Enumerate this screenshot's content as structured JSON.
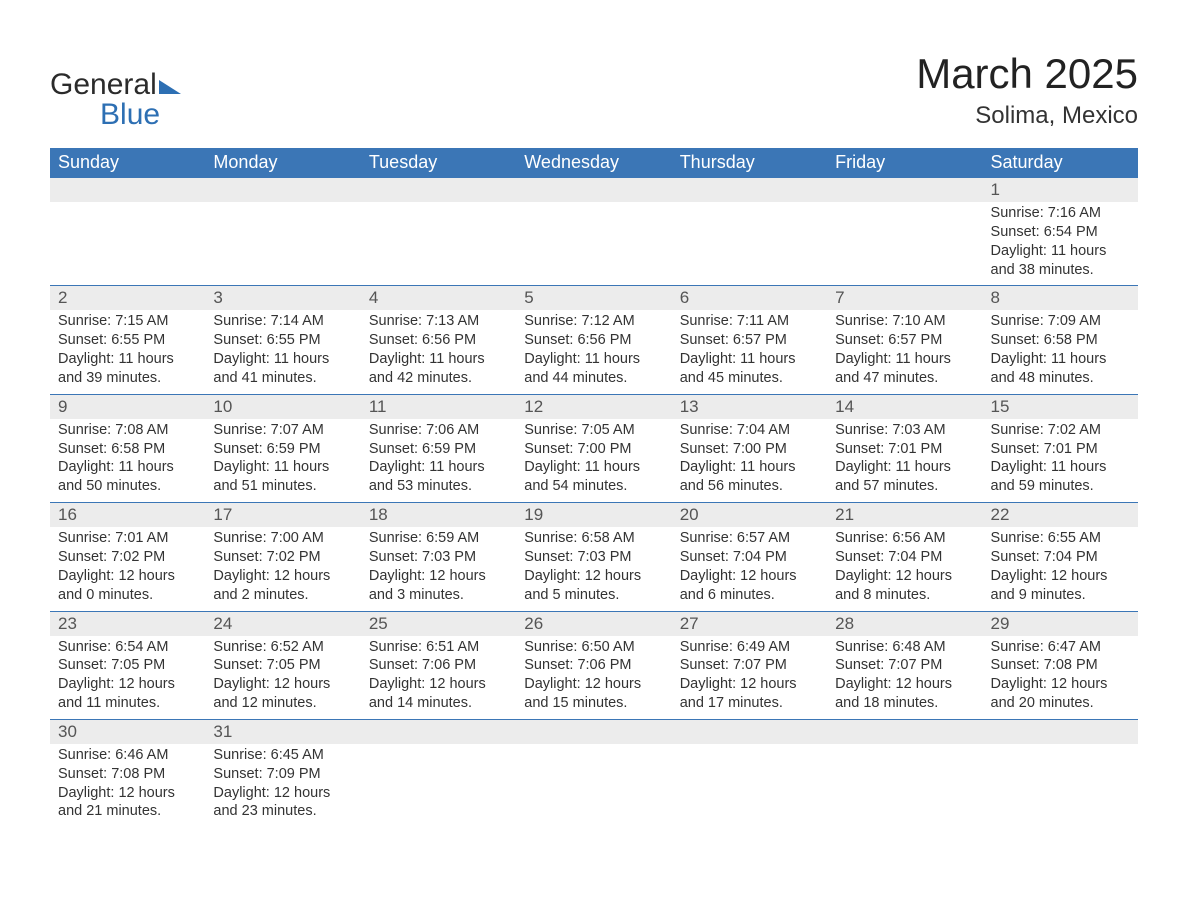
{
  "brand": {
    "word1": "General",
    "word2": "Blue"
  },
  "title": "March 2025",
  "location": "Solima, Mexico",
  "colors": {
    "header_bg": "#3b76b6",
    "header_text": "#ffffff",
    "daynum_bg": "#ececec",
    "border": "#3b76b6",
    "text": "#333333",
    "brand_blue": "#2d6fb3"
  },
  "weekdays": [
    "Sunday",
    "Monday",
    "Tuesday",
    "Wednesday",
    "Thursday",
    "Friday",
    "Saturday"
  ],
  "weeks": [
    [
      null,
      null,
      null,
      null,
      null,
      null,
      {
        "n": "1",
        "sr": "Sunrise: 7:16 AM",
        "ss": "Sunset: 6:54 PM",
        "d1": "Daylight: 11 hours",
        "d2": "and 38 minutes."
      }
    ],
    [
      {
        "n": "2",
        "sr": "Sunrise: 7:15 AM",
        "ss": "Sunset: 6:55 PM",
        "d1": "Daylight: 11 hours",
        "d2": "and 39 minutes."
      },
      {
        "n": "3",
        "sr": "Sunrise: 7:14 AM",
        "ss": "Sunset: 6:55 PM",
        "d1": "Daylight: 11 hours",
        "d2": "and 41 minutes."
      },
      {
        "n": "4",
        "sr": "Sunrise: 7:13 AM",
        "ss": "Sunset: 6:56 PM",
        "d1": "Daylight: 11 hours",
        "d2": "and 42 minutes."
      },
      {
        "n": "5",
        "sr": "Sunrise: 7:12 AM",
        "ss": "Sunset: 6:56 PM",
        "d1": "Daylight: 11 hours",
        "d2": "and 44 minutes."
      },
      {
        "n": "6",
        "sr": "Sunrise: 7:11 AM",
        "ss": "Sunset: 6:57 PM",
        "d1": "Daylight: 11 hours",
        "d2": "and 45 minutes."
      },
      {
        "n": "7",
        "sr": "Sunrise: 7:10 AM",
        "ss": "Sunset: 6:57 PM",
        "d1": "Daylight: 11 hours",
        "d2": "and 47 minutes."
      },
      {
        "n": "8",
        "sr": "Sunrise: 7:09 AM",
        "ss": "Sunset: 6:58 PM",
        "d1": "Daylight: 11 hours",
        "d2": "and 48 minutes."
      }
    ],
    [
      {
        "n": "9",
        "sr": "Sunrise: 7:08 AM",
        "ss": "Sunset: 6:58 PM",
        "d1": "Daylight: 11 hours",
        "d2": "and 50 minutes."
      },
      {
        "n": "10",
        "sr": "Sunrise: 7:07 AM",
        "ss": "Sunset: 6:59 PM",
        "d1": "Daylight: 11 hours",
        "d2": "and 51 minutes."
      },
      {
        "n": "11",
        "sr": "Sunrise: 7:06 AM",
        "ss": "Sunset: 6:59 PM",
        "d1": "Daylight: 11 hours",
        "d2": "and 53 minutes."
      },
      {
        "n": "12",
        "sr": "Sunrise: 7:05 AM",
        "ss": "Sunset: 7:00 PM",
        "d1": "Daylight: 11 hours",
        "d2": "and 54 minutes."
      },
      {
        "n": "13",
        "sr": "Sunrise: 7:04 AM",
        "ss": "Sunset: 7:00 PM",
        "d1": "Daylight: 11 hours",
        "d2": "and 56 minutes."
      },
      {
        "n": "14",
        "sr": "Sunrise: 7:03 AM",
        "ss": "Sunset: 7:01 PM",
        "d1": "Daylight: 11 hours",
        "d2": "and 57 minutes."
      },
      {
        "n": "15",
        "sr": "Sunrise: 7:02 AM",
        "ss": "Sunset: 7:01 PM",
        "d1": "Daylight: 11 hours",
        "d2": "and 59 minutes."
      }
    ],
    [
      {
        "n": "16",
        "sr": "Sunrise: 7:01 AM",
        "ss": "Sunset: 7:02 PM",
        "d1": "Daylight: 12 hours",
        "d2": "and 0 minutes."
      },
      {
        "n": "17",
        "sr": "Sunrise: 7:00 AM",
        "ss": "Sunset: 7:02 PM",
        "d1": "Daylight: 12 hours",
        "d2": "and 2 minutes."
      },
      {
        "n": "18",
        "sr": "Sunrise: 6:59 AM",
        "ss": "Sunset: 7:03 PM",
        "d1": "Daylight: 12 hours",
        "d2": "and 3 minutes."
      },
      {
        "n": "19",
        "sr": "Sunrise: 6:58 AM",
        "ss": "Sunset: 7:03 PM",
        "d1": "Daylight: 12 hours",
        "d2": "and 5 minutes."
      },
      {
        "n": "20",
        "sr": "Sunrise: 6:57 AM",
        "ss": "Sunset: 7:04 PM",
        "d1": "Daylight: 12 hours",
        "d2": "and 6 minutes."
      },
      {
        "n": "21",
        "sr": "Sunrise: 6:56 AM",
        "ss": "Sunset: 7:04 PM",
        "d1": "Daylight: 12 hours",
        "d2": "and 8 minutes."
      },
      {
        "n": "22",
        "sr": "Sunrise: 6:55 AM",
        "ss": "Sunset: 7:04 PM",
        "d1": "Daylight: 12 hours",
        "d2": "and 9 minutes."
      }
    ],
    [
      {
        "n": "23",
        "sr": "Sunrise: 6:54 AM",
        "ss": "Sunset: 7:05 PM",
        "d1": "Daylight: 12 hours",
        "d2": "and 11 minutes."
      },
      {
        "n": "24",
        "sr": "Sunrise: 6:52 AM",
        "ss": "Sunset: 7:05 PM",
        "d1": "Daylight: 12 hours",
        "d2": "and 12 minutes."
      },
      {
        "n": "25",
        "sr": "Sunrise: 6:51 AM",
        "ss": "Sunset: 7:06 PM",
        "d1": "Daylight: 12 hours",
        "d2": "and 14 minutes."
      },
      {
        "n": "26",
        "sr": "Sunrise: 6:50 AM",
        "ss": "Sunset: 7:06 PM",
        "d1": "Daylight: 12 hours",
        "d2": "and 15 minutes."
      },
      {
        "n": "27",
        "sr": "Sunrise: 6:49 AM",
        "ss": "Sunset: 7:07 PM",
        "d1": "Daylight: 12 hours",
        "d2": "and 17 minutes."
      },
      {
        "n": "28",
        "sr": "Sunrise: 6:48 AM",
        "ss": "Sunset: 7:07 PM",
        "d1": "Daylight: 12 hours",
        "d2": "and 18 minutes."
      },
      {
        "n": "29",
        "sr": "Sunrise: 6:47 AM",
        "ss": "Sunset: 7:08 PM",
        "d1": "Daylight: 12 hours",
        "d2": "and 20 minutes."
      }
    ],
    [
      {
        "n": "30",
        "sr": "Sunrise: 6:46 AM",
        "ss": "Sunset: 7:08 PM",
        "d1": "Daylight: 12 hours",
        "d2": "and 21 minutes."
      },
      {
        "n": "31",
        "sr": "Sunrise: 6:45 AM",
        "ss": "Sunset: 7:09 PM",
        "d1": "Daylight: 12 hours",
        "d2": "and 23 minutes."
      },
      null,
      null,
      null,
      null,
      null
    ]
  ]
}
